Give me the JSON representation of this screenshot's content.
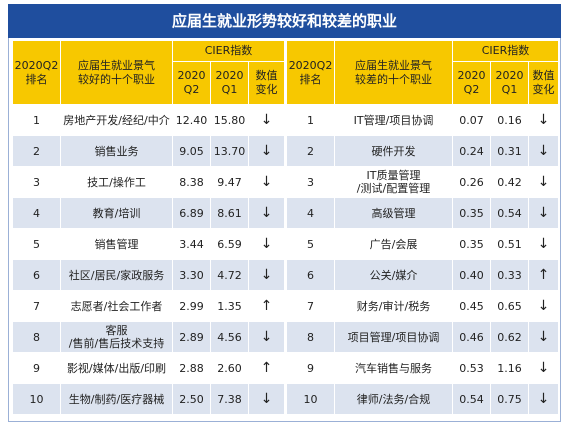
{
  "title": "应届生就业形势较好和较差的职业",
  "header": {
    "rank": "2020Q2\n排名",
    "good_jobs": "应届生就业景气\n较好的十个职业",
    "bad_jobs": "应届生就业景气\n较差的十个职业",
    "cier_index": "CIER指数",
    "col_2020q2": "2020\nQ2",
    "col_2020q1": "2020\nQ1",
    "col_change": "数值\n变化"
  },
  "rows": [
    {
      "rank": "1",
      "good": "房地产开发/经纪/中介",
      "g_q2": "12.40",
      "g_q1": "15.80",
      "g_chg": "↓",
      "rank2": "1",
      "bad": "IT管理/项目协调",
      "b_q2": "0.07",
      "b_q1": "0.16",
      "b_chg": "↓"
    },
    {
      "rank": "2",
      "good": "销售业务",
      "g_q2": "9.05",
      "g_q1": "13.70",
      "g_chg": "↓",
      "rank2": "2",
      "bad": "硬件开发",
      "b_q2": "0.24",
      "b_q1": "0.31",
      "b_chg": "↓"
    },
    {
      "rank": "3",
      "good": "技工/操作工",
      "g_q2": "8.38",
      "g_q1": "9.47",
      "g_chg": "↓",
      "rank2": "3",
      "bad": "IT质量管理\n/测试/配置管理",
      "b_q2": "0.26",
      "b_q1": "0.42",
      "b_chg": "↓"
    },
    {
      "rank": "4",
      "good": "教育/培训",
      "g_q2": "6.89",
      "g_q1": "8.61",
      "g_chg": "↓",
      "rank2": "4",
      "bad": "高级管理",
      "b_q2": "0.35",
      "b_q1": "0.54",
      "b_chg": "↓"
    },
    {
      "rank": "5",
      "good": "销售管理",
      "g_q2": "3.44",
      "g_q1": "6.59",
      "g_chg": "↓",
      "rank2": "5",
      "bad": "广告/会展",
      "b_q2": "0.35",
      "b_q1": "0.51",
      "b_chg": "↓"
    },
    {
      "rank": "6",
      "good": "社区/居民/家政服务",
      "g_q2": "3.30",
      "g_q1": "4.72",
      "g_chg": "↓",
      "rank2": "6",
      "bad": "公关/媒介",
      "b_q2": "0.40",
      "b_q1": "0.33",
      "b_chg": "↑"
    },
    {
      "rank": "7",
      "good": "志愿者/社会工作者",
      "g_q2": "2.99",
      "g_q1": "1.35",
      "g_chg": "↑",
      "rank2": "7",
      "bad": "财务/审计/税务",
      "b_q2": "0.45",
      "b_q1": "0.65",
      "b_chg": "↓"
    },
    {
      "rank": "8",
      "good": "客服\n/售前/售后技术支持",
      "g_q2": "2.89",
      "g_q1": "4.56",
      "g_chg": "↓",
      "rank2": "8",
      "bad": "项目管理/项目协调",
      "b_q2": "0.46",
      "b_q1": "0.62",
      "b_chg": "↓"
    },
    {
      "rank": "9",
      "good": "影视/媒体/出版/印刷",
      "g_q2": "2.88",
      "g_q1": "2.60",
      "g_chg": "↑",
      "rank2": "9",
      "bad": "汽车销售与服务",
      "b_q2": "0.53",
      "b_q1": "1.16",
      "b_chg": "↓"
    },
    {
      "rank": "10",
      "good": "生物/制药/医疗器械",
      "g_q2": "2.50",
      "g_q1": "7.38",
      "g_chg": "↓",
      "rank2": "10",
      "bad": "律师/法务/合规",
      "b_q2": "0.54",
      "b_q1": "0.75",
      "b_chg": "↓"
    }
  ]
}
